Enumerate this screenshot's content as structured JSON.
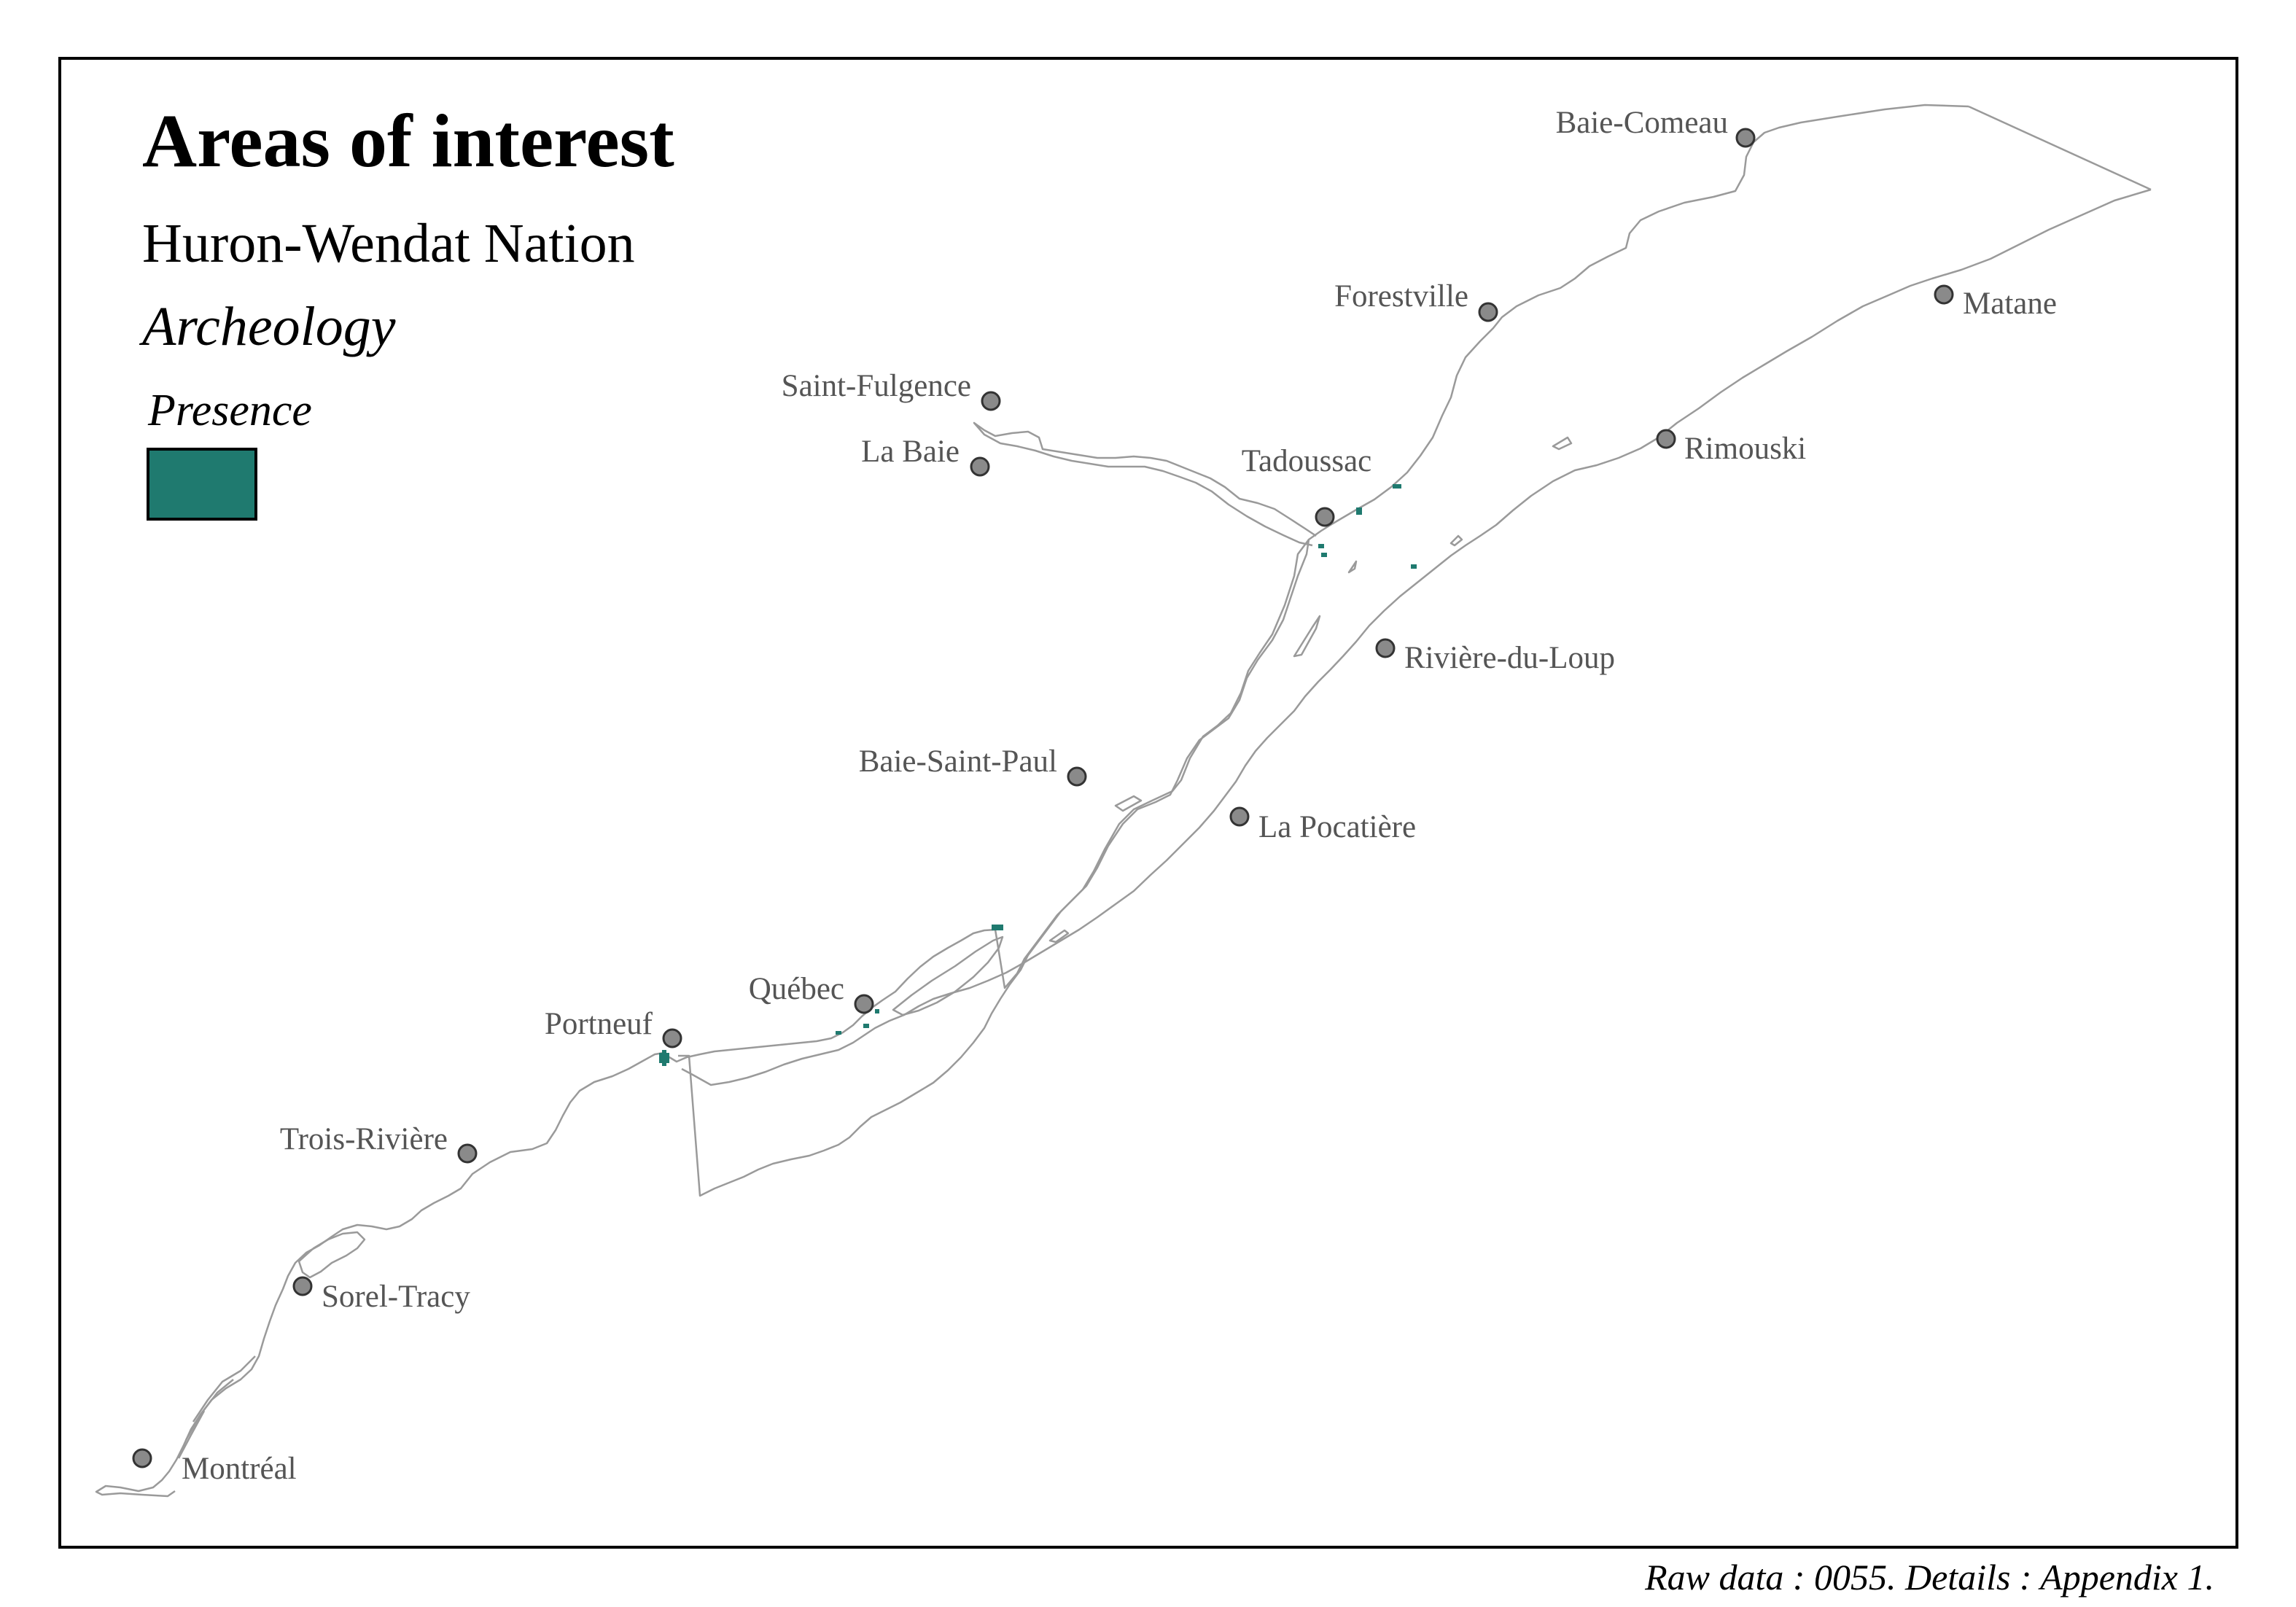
{
  "map": {
    "title": "Areas of interest",
    "nation": "Huron-Wendat Nation",
    "theme": "Archeology",
    "legend": {
      "title": "Presence",
      "color": "#1f7a6f"
    },
    "source_note": "Raw data : 0055. Details : Appendix 1.",
    "colors": {
      "shoreline": "#9a9a9a",
      "city_marker": "#8a8a8a",
      "city_label": "#555555",
      "presence": "#1f7a6f"
    },
    "cities": [
      {
        "id": "baie-comeau",
        "name": "Baie-Comeau"
      },
      {
        "id": "forestville",
        "name": "Forestville"
      },
      {
        "id": "matane",
        "name": "Matane"
      },
      {
        "id": "saint-fulgence",
        "name": "Saint-Fulgence"
      },
      {
        "id": "la-baie",
        "name": "La Baie"
      },
      {
        "id": "tadoussac",
        "name": "Tadoussac"
      },
      {
        "id": "rimouski",
        "name": "Rimouski"
      },
      {
        "id": "riviere-du-loup",
        "name": "Rivière-du-Loup"
      },
      {
        "id": "baie-saint-paul",
        "name": "Baie-Saint-Paul"
      },
      {
        "id": "la-pocatiere",
        "name": "La Pocatière"
      },
      {
        "id": "quebec",
        "name": "Québec"
      },
      {
        "id": "portneuf",
        "name": "Portneuf"
      },
      {
        "id": "trois-riviere",
        "name": "Trois-Rivière"
      },
      {
        "id": "sorel-tracy",
        "name": "Sorel-Tracy"
      },
      {
        "id": "montreal",
        "name": "Montréal"
      }
    ]
  }
}
